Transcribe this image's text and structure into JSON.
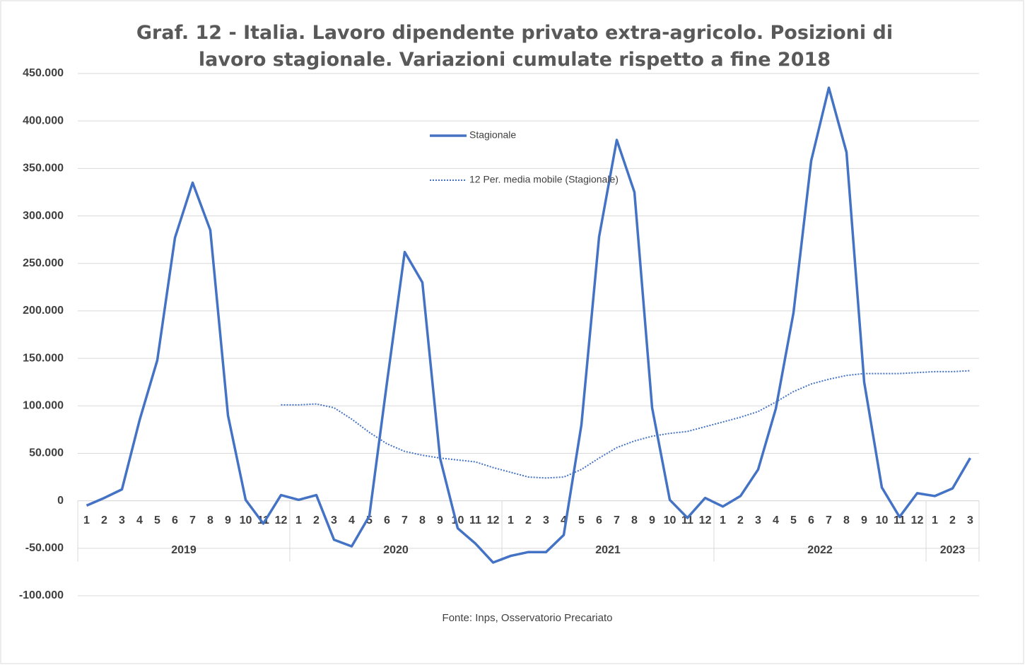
{
  "chart_data": {
    "type": "line",
    "title": "Graf. 12 - Italia. Lavoro dipendente privato extra-agricolo. Posizioni di lavoro stagionale. Variazioni cumulate rispetto a fine 2018",
    "source": "Fonte: Inps, Osservatorio Precariato",
    "categories": [
      "1",
      "2",
      "3",
      "4",
      "5",
      "6",
      "7",
      "8",
      "9",
      "10",
      "11",
      "12",
      "1",
      "2",
      "3",
      "4",
      "5",
      "6",
      "7",
      "8",
      "9",
      "10",
      "11",
      "12",
      "1",
      "2",
      "3",
      "4",
      "5",
      "6",
      "7",
      "8",
      "9",
      "10",
      "11",
      "12",
      "1",
      "2",
      "3",
      "4",
      "5",
      "6",
      "7",
      "8",
      "9",
      "10",
      "11",
      "12",
      "1",
      "2",
      "3"
    ],
    "x_groups": [
      "2019",
      "2020",
      "2021",
      "2022",
      "2023"
    ],
    "series": [
      {
        "name": "Stagionale",
        "color": "#4472c4",
        "style": "solid",
        "values": [
          -5000,
          3000,
          12000,
          85000,
          148000,
          277000,
          335000,
          285000,
          90000,
          1000,
          -24000,
          6000,
          1000,
          6000,
          -41000,
          -48000,
          -16000,
          125000,
          262000,
          230000,
          45000,
          -29000,
          -45000,
          -65000,
          -58000,
          -54000,
          -54000,
          -36000,
          80000,
          278000,
          380000,
          325000,
          98000,
          1000,
          -18000,
          3000,
          -6000,
          5000,
          33000,
          97000,
          198000,
          358000,
          435000,
          367000,
          125000,
          14000,
          -17000,
          8000,
          5000,
          13000,
          45000
        ]
      },
      {
        "name": "12 Per. media mobile (Stagionale)",
        "color": "#4472c4",
        "style": "dotted",
        "values": [
          null,
          null,
          null,
          null,
          null,
          null,
          null,
          null,
          null,
          null,
          null,
          101000,
          101000,
          102000,
          98000,
          86000,
          72000,
          60000,
          52000,
          48000,
          45000,
          43000,
          41000,
          35000,
          30000,
          25000,
          24000,
          25000,
          33000,
          45000,
          56000,
          63000,
          68000,
          71000,
          73000,
          78000,
          83000,
          88000,
          94000,
          104000,
          115000,
          123000,
          128000,
          132000,
          134000,
          134000,
          134000,
          135000,
          136000,
          136000,
          137000
        ]
      }
    ],
    "ylim": [
      -100000,
      450000
    ],
    "yticks": [
      {
        "value": -100000,
        "label": "-100.000"
      },
      {
        "value": -50000,
        "label": "-50.000"
      },
      0,
      {
        "value": 50000,
        "label": "50.000"
      },
      {
        "value": 100000,
        "label": "100.000"
      },
      {
        "value": 150000,
        "label": "150.000"
      },
      {
        "value": 200000,
        "label": "200.000"
      },
      {
        "value": 250000,
        "label": "250.000"
      },
      {
        "value": 300000,
        "label": "300.000"
      },
      {
        "value": 350000,
        "label": "350.000"
      },
      {
        "value": 400000,
        "label": "400.000"
      },
      {
        "value": 450000,
        "label": "450.000"
      }
    ],
    "grid": true
  }
}
